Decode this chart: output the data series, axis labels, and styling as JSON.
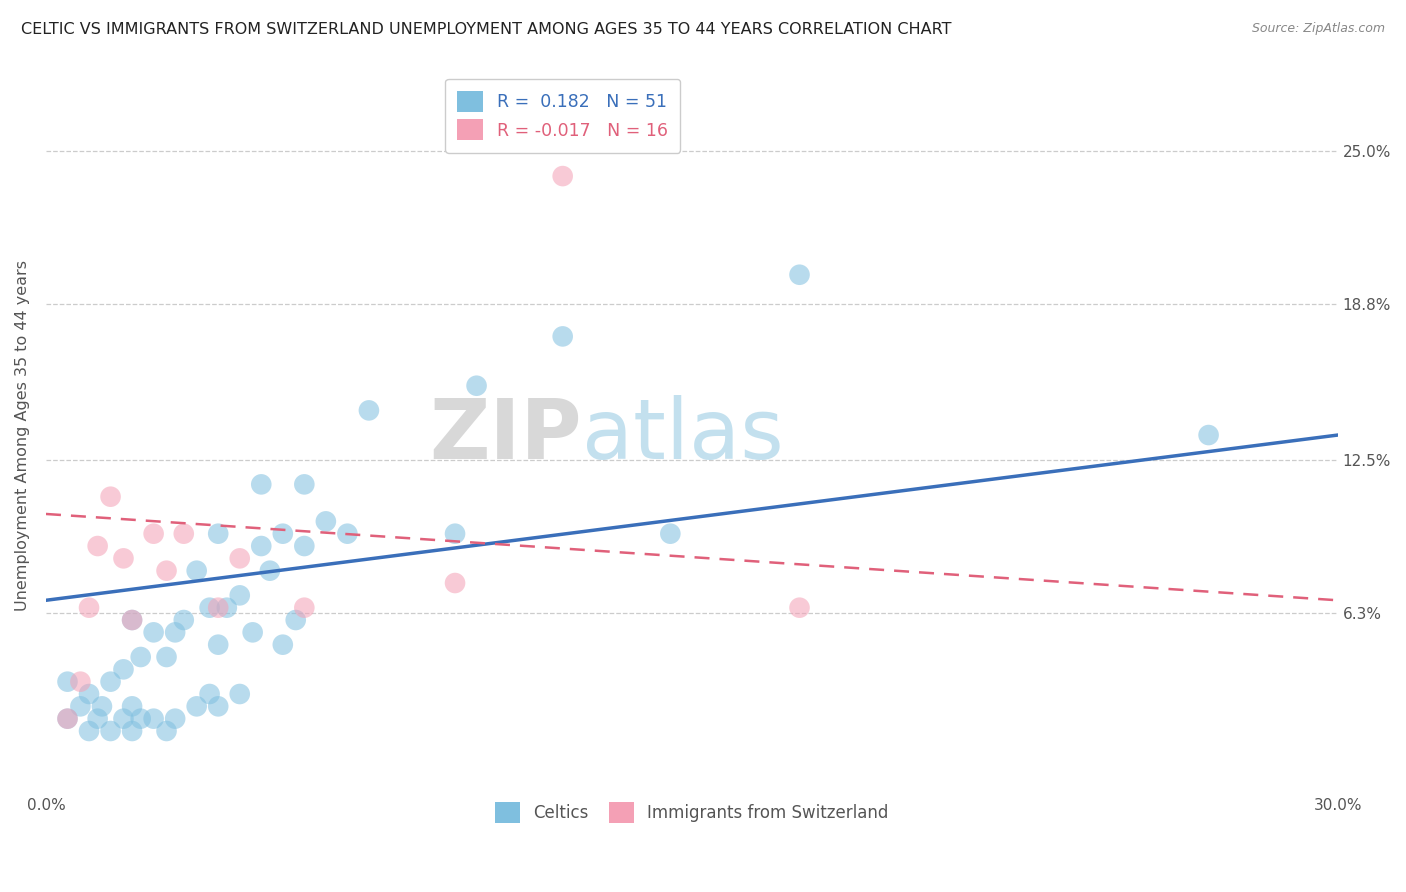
{
  "title": "CELTIC VS IMMIGRANTS FROM SWITZERLAND UNEMPLOYMENT AMONG AGES 35 TO 44 YEARS CORRELATION CHART",
  "source": "Source: ZipAtlas.com",
  "ylabel": "Unemployment Among Ages 35 to 44 years",
  "ytick_labels": [
    "6.3%",
    "12.5%",
    "18.8%",
    "25.0%"
  ],
  "ytick_values": [
    0.063,
    0.125,
    0.188,
    0.25
  ],
  "xlim": [
    0.0,
    0.3
  ],
  "ylim": [
    -0.01,
    0.28
  ],
  "legend_label1": "Celtics",
  "legend_label2": "Immigrants from Switzerland",
  "R1": 0.182,
  "N1": 51,
  "R2": -0.017,
  "N2": 16,
  "color_blue": "#7fbfdf",
  "color_pink": "#f4a0b5",
  "line_color_blue": "#3a6fba",
  "line_color_pink": "#e0607a",
  "watermark_zip": "ZIP",
  "watermark_atlas": "atlas",
  "celtics_x": [
    0.005,
    0.005,
    0.008,
    0.01,
    0.01,
    0.012,
    0.013,
    0.015,
    0.015,
    0.018,
    0.018,
    0.02,
    0.02,
    0.02,
    0.022,
    0.022,
    0.025,
    0.025,
    0.028,
    0.028,
    0.03,
    0.03,
    0.032,
    0.035,
    0.035,
    0.038,
    0.038,
    0.04,
    0.04,
    0.04,
    0.042,
    0.045,
    0.045,
    0.048,
    0.05,
    0.05,
    0.052,
    0.055,
    0.055,
    0.058,
    0.06,
    0.06,
    0.065,
    0.07,
    0.075,
    0.095,
    0.1,
    0.12,
    0.145,
    0.175,
    0.27
  ],
  "celtics_y": [
    0.02,
    0.035,
    0.025,
    0.015,
    0.03,
    0.02,
    0.025,
    0.015,
    0.035,
    0.02,
    0.04,
    0.015,
    0.025,
    0.06,
    0.02,
    0.045,
    0.02,
    0.055,
    0.015,
    0.045,
    0.02,
    0.055,
    0.06,
    0.025,
    0.08,
    0.03,
    0.065,
    0.025,
    0.05,
    0.095,
    0.065,
    0.03,
    0.07,
    0.055,
    0.09,
    0.115,
    0.08,
    0.05,
    0.095,
    0.06,
    0.09,
    0.115,
    0.1,
    0.095,
    0.145,
    0.095,
    0.155,
    0.175,
    0.095,
    0.2,
    0.135
  ],
  "swiss_x": [
    0.005,
    0.008,
    0.01,
    0.012,
    0.015,
    0.018,
    0.02,
    0.025,
    0.028,
    0.032,
    0.04,
    0.045,
    0.06,
    0.095,
    0.12,
    0.175
  ],
  "swiss_y": [
    0.02,
    0.035,
    0.065,
    0.09,
    0.11,
    0.085,
    0.06,
    0.095,
    0.08,
    0.095,
    0.065,
    0.085,
    0.065,
    0.075,
    0.24,
    0.065
  ],
  "blue_line_x0": 0.0,
  "blue_line_y0": 0.068,
  "blue_line_x1": 0.3,
  "blue_line_y1": 0.135,
  "pink_line_x0": 0.0,
  "pink_line_y0": 0.103,
  "pink_line_x1": 0.3,
  "pink_line_y1": 0.068
}
